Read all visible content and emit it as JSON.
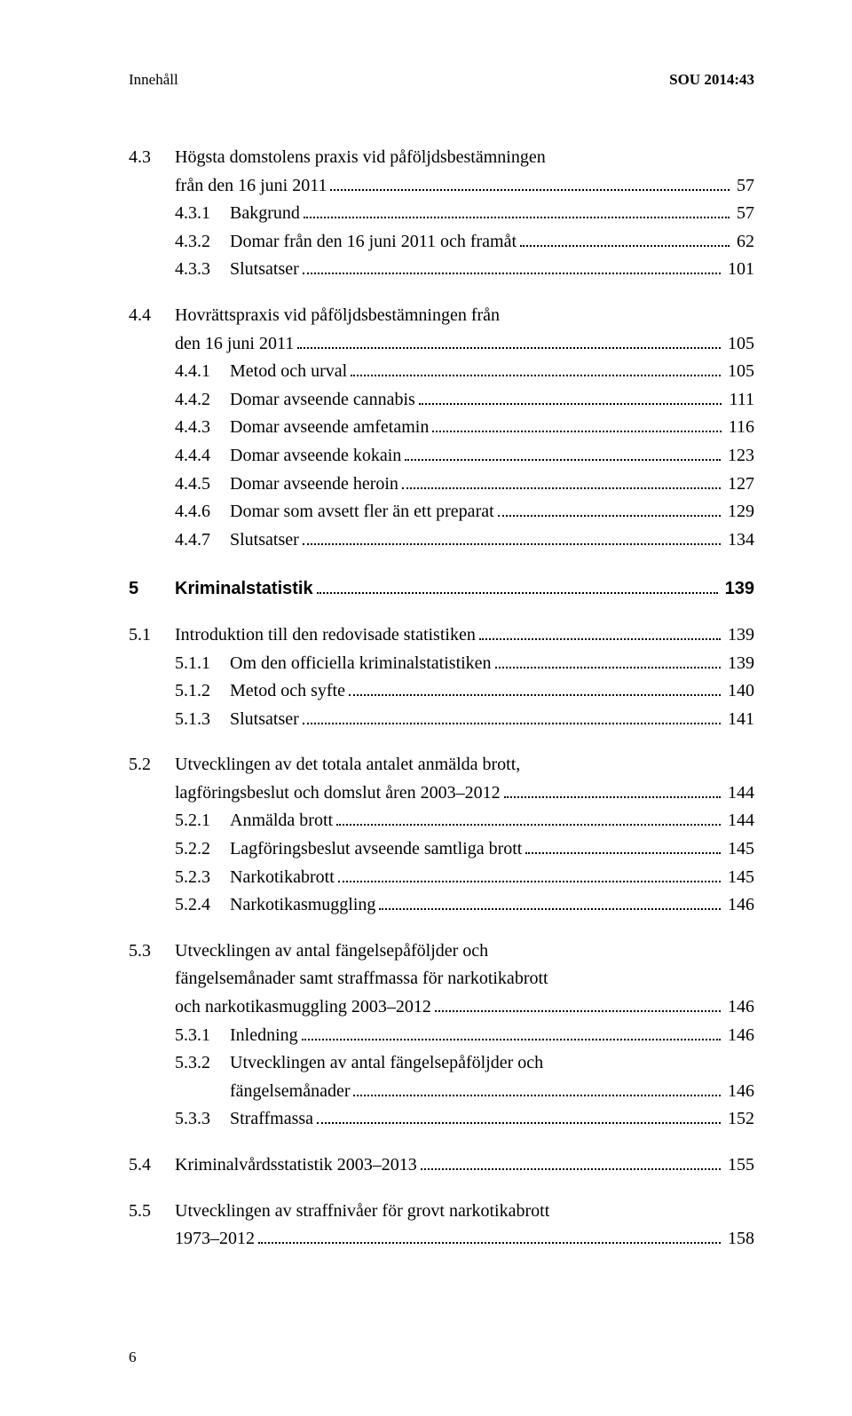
{
  "header": {
    "left": "Innehåll",
    "right": "SOU 2014:43"
  },
  "entries": [
    {
      "level": 0,
      "num": "4.3",
      "label_lines": [
        "Högsta domstolens praxis vid påföljdsbestämningen",
        "från den 16 juni 2011"
      ],
      "page": "57",
      "spaceAfter": 0
    },
    {
      "level": 1,
      "num": "4.3.1",
      "label_lines": [
        "Bakgrund"
      ],
      "page": "57",
      "spaceAfter": 0
    },
    {
      "level": 1,
      "num": "4.3.2",
      "label_lines": [
        "Domar från den 16 juni 2011 och framåt"
      ],
      "page": "62",
      "spaceAfter": 0
    },
    {
      "level": 1,
      "num": "4.3.3",
      "label_lines": [
        "Slutsatser"
      ],
      "page": "101",
      "spaceAfter": 20
    },
    {
      "level": 0,
      "num": "4.4",
      "label_lines": [
        "Hovrättspraxis vid påföljdsbestämningen från",
        "den 16 juni 2011"
      ],
      "page": "105",
      "spaceAfter": 0
    },
    {
      "level": 1,
      "num": "4.4.1",
      "label_lines": [
        "Metod och urval"
      ],
      "page": "105",
      "spaceAfter": 0
    },
    {
      "level": 1,
      "num": "4.4.2",
      "label_lines": [
        "Domar avseende cannabis"
      ],
      "page": "111",
      "spaceAfter": 0
    },
    {
      "level": 1,
      "num": "4.4.3",
      "label_lines": [
        "Domar avseende amfetamin"
      ],
      "page": "116",
      "spaceAfter": 0
    },
    {
      "level": 1,
      "num": "4.4.4",
      "label_lines": [
        "Domar avseende kokain"
      ],
      "page": "123",
      "spaceAfter": 0
    },
    {
      "level": 1,
      "num": "4.4.5",
      "label_lines": [
        "Domar avseende heroin"
      ],
      "page": "127",
      "spaceAfter": 0
    },
    {
      "level": 1,
      "num": "4.4.6",
      "label_lines": [
        "Domar som avsett fler än ett preparat"
      ],
      "page": "129",
      "spaceAfter": 0
    },
    {
      "level": 1,
      "num": "4.4.7",
      "label_lines": [
        "Slutsatser"
      ],
      "page": "134",
      "spaceAfter": 24
    },
    {
      "level": 0,
      "num": "5",
      "label_lines": [
        "Kriminalstatistik"
      ],
      "page": "139",
      "chapter": true,
      "spaceAfter": 20
    },
    {
      "level": 0,
      "num": "5.1",
      "label_lines": [
        "Introduktion till den redovisade statistiken"
      ],
      "page": "139",
      "spaceAfter": 0
    },
    {
      "level": 1,
      "num": "5.1.1",
      "label_lines": [
        "Om den officiella kriminalstatistiken"
      ],
      "page": "139",
      "spaceAfter": 0
    },
    {
      "level": 1,
      "num": "5.1.2",
      "label_lines": [
        "Metod och syfte"
      ],
      "page": "140",
      "spaceAfter": 0
    },
    {
      "level": 1,
      "num": "5.1.3",
      "label_lines": [
        "Slutsatser"
      ],
      "page": "141",
      "spaceAfter": 20
    },
    {
      "level": 0,
      "num": "5.2",
      "label_lines": [
        "Utvecklingen av det totala antalet anmälda brott,",
        "lagföringsbeslut och domslut åren 2003–2012"
      ],
      "page": "144",
      "spaceAfter": 0
    },
    {
      "level": 1,
      "num": "5.2.1",
      "label_lines": [
        "Anmälda brott"
      ],
      "page": "144",
      "spaceAfter": 0
    },
    {
      "level": 1,
      "num": "5.2.2",
      "label_lines": [
        "Lagföringsbeslut avseende samtliga brott"
      ],
      "page": "145",
      "spaceAfter": 0
    },
    {
      "level": 1,
      "num": "5.2.3",
      "label_lines": [
        "Narkotikabrott"
      ],
      "page": "145",
      "spaceAfter": 0
    },
    {
      "level": 1,
      "num": "5.2.4",
      "label_lines": [
        "Narkotikasmuggling"
      ],
      "page": "146",
      "spaceAfter": 20
    },
    {
      "level": 0,
      "num": "5.3",
      "label_lines": [
        "Utvecklingen av antal fängelsepåföljder och",
        "fängelsemånader samt straffmassa för narkotikabrott",
        "och narkotikasmuggling 2003–2012"
      ],
      "page": "146",
      "spaceAfter": 0
    },
    {
      "level": 1,
      "num": "5.3.1",
      "label_lines": [
        "Inledning"
      ],
      "page": "146",
      "spaceAfter": 0
    },
    {
      "level": 1,
      "num": "5.3.2",
      "label_lines": [
        "Utvecklingen av antal fängelsepåföljder och",
        "fängelsemånader"
      ],
      "page": "146",
      "spaceAfter": 0
    },
    {
      "level": 1,
      "num": "5.3.3",
      "label_lines": [
        "Straffmassa"
      ],
      "page": "152",
      "spaceAfter": 20
    },
    {
      "level": 0,
      "num": "5.4",
      "label_lines": [
        "Kriminalvårdsstatistik 2003–2013"
      ],
      "page": "155",
      "spaceAfter": 20
    },
    {
      "level": 0,
      "num": "5.5",
      "label_lines": [
        "Utvecklingen av straffnivåer för grovt narkotikabrott",
        "1973–2012"
      ],
      "page": "158",
      "spaceAfter": 0
    }
  ],
  "footer_page_number": "6"
}
